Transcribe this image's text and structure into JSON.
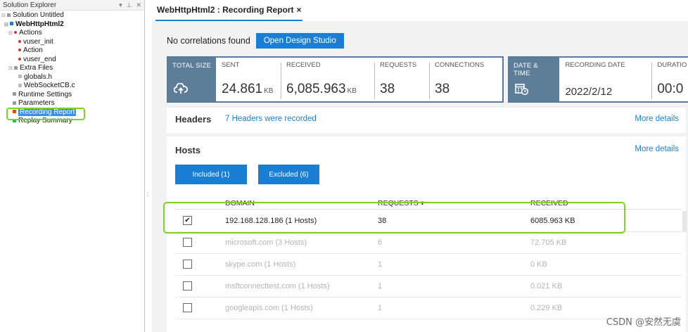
{
  "explorer": {
    "title": "Solution Explorer",
    "controls": [
      "▾",
      "⊥",
      "✕"
    ],
    "tree": [
      {
        "label": "Solution Untitled",
        "bold": false
      },
      {
        "label": "WebHttpHtml2",
        "bold": true
      },
      {
        "label": "Actions",
        "bold": false
      },
      {
        "label": "vuser_init",
        "bold": false
      },
      {
        "label": "Action",
        "bold": false
      },
      {
        "label": "vuser_end",
        "bold": false
      },
      {
        "label": "Extra Files",
        "bold": false
      },
      {
        "label": "globals.h",
        "bold": false
      },
      {
        "label": "WebSocketCB.c",
        "bold": false
      },
      {
        "label": "Runtime Settings",
        "bold": false
      },
      {
        "label": "Parameters",
        "bold": false
      },
      {
        "label": "Recording Report",
        "bold": false
      },
      {
        "label": "Replay Summary",
        "bold": false
      }
    ]
  },
  "tab": {
    "title": "WebHttpHtml2 : Recording Report",
    "close": "×"
  },
  "correlations": {
    "message": "No correlations found",
    "button": "Open Design Studio"
  },
  "stats_left": {
    "icon_label": "TOTAL SIZE",
    "icon": "cloud-upload-icon",
    "cells": [
      {
        "label": "SENT",
        "value": "24.861",
        "unit": "KB"
      },
      {
        "label": "RECEIVED",
        "value": "6,085.963",
        "unit": "KB"
      },
      {
        "label": "REQUESTS",
        "value": "38",
        "unit": ""
      },
      {
        "label": "CONNECTIONS",
        "value": "38",
        "unit": ""
      }
    ]
  },
  "stats_right": {
    "icon_label": "DATE & TIME",
    "icon": "calendar-clock-icon",
    "cells": [
      {
        "label": "RECORDING DATE",
        "value": "2022/2/12",
        "unit": ""
      },
      {
        "label": "DURATIO",
        "value": "00:0",
        "unit": ""
      }
    ]
  },
  "headers": {
    "title": "Headers",
    "summary": "7 Headers were recorded",
    "more": "More details"
  },
  "hosts": {
    "title": "Hosts",
    "more": "More details",
    "filters": {
      "included": "Included (1)",
      "excluded": "Excluded (6)"
    },
    "columns": {
      "domain": "DOMAIN",
      "requests": "REQUESTS",
      "sort": "▾",
      "received": "RECEIVED"
    },
    "rows": [
      {
        "checked": true,
        "domain": "192.168.128.186 (1 Hosts)",
        "requests": "38",
        "received": "6085.963 KB"
      },
      {
        "checked": false,
        "domain": "microsoft.com (3 Hosts)",
        "requests": "6",
        "received": "72.705 KB"
      },
      {
        "checked": false,
        "domain": "skype.com (1 Hosts)",
        "requests": "1",
        "received": "0 KB"
      },
      {
        "checked": false,
        "domain": "msftconnecttest.com (1 Hosts)",
        "requests": "1",
        "received": "0.021 KB"
      },
      {
        "checked": false,
        "domain": "googleapis.com (1 Hosts)",
        "requests": "1",
        "received": "0.229 KB"
      }
    ]
  },
  "watermark": "CSDN @安然无虞",
  "colors": {
    "accent": "#1a7fd4",
    "stat_header": "#5e7d99",
    "highlight": "#7ed321"
  }
}
